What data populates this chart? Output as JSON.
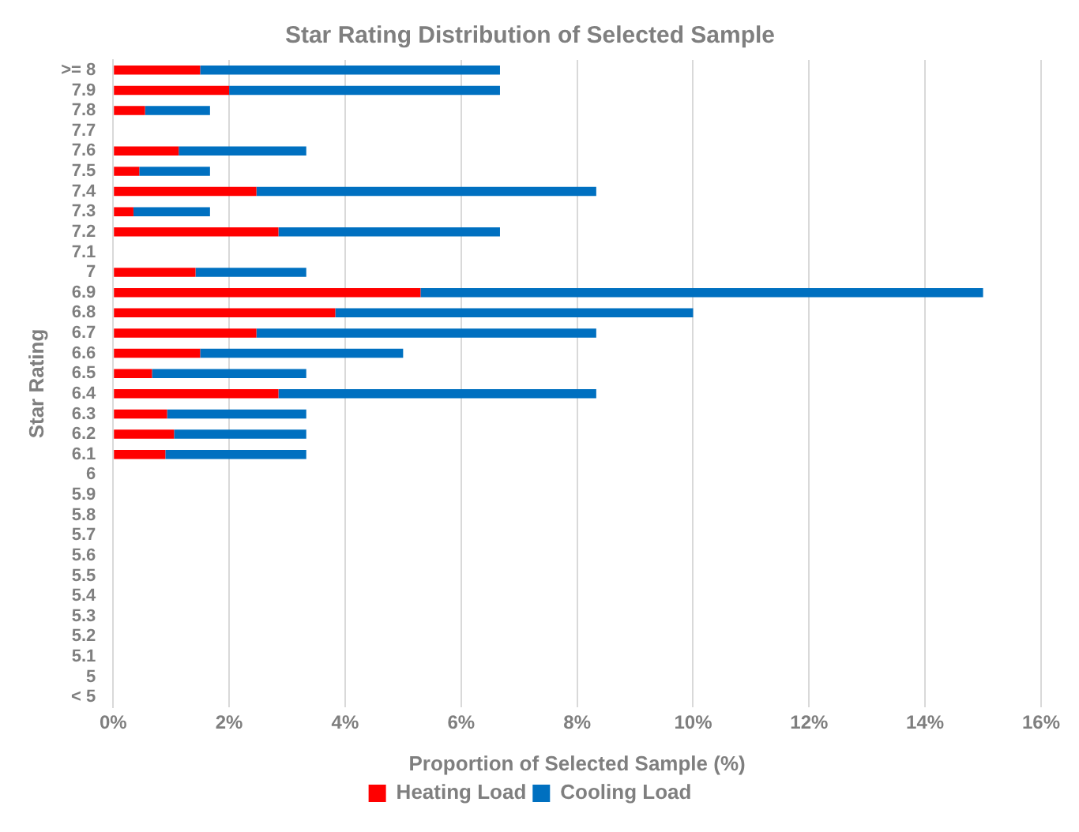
{
  "chart_data": {
    "type": "bar",
    "orientation": "horizontal",
    "stacked": true,
    "title": "Star Rating Distribution of Selected Sample",
    "xlabel": "Proportion of Selected Sample (%)",
    "ylabel": "Star Rating",
    "categories": [
      ">= 8",
      "7.9",
      "7.8",
      "7.7",
      "7.6",
      "7.5",
      "7.4",
      "7.3",
      "7.2",
      "7.1",
      "7",
      "6.9",
      "6.8",
      "6.7",
      "6.6",
      "6.5",
      "6.4",
      "6.3",
      "6.2",
      "6.1",
      "6",
      "5.9",
      "5.8",
      "5.7",
      "5.6",
      "5.5",
      "5.4",
      "5.3",
      "5.2",
      "5.1",
      "5",
      "< 5"
    ],
    "series": [
      {
        "name": "Heating Load",
        "color": "#ff0000",
        "values": [
          1.5,
          2.0,
          0.55,
          null,
          1.13,
          0.45,
          2.47,
          0.35,
          2.85,
          null,
          1.42,
          5.3,
          3.83,
          2.47,
          1.5,
          0.67,
          2.85,
          0.93,
          1.05,
          0.9,
          null,
          null,
          null,
          null,
          null,
          null,
          null,
          null,
          null,
          null,
          null,
          null
        ]
      },
      {
        "name": "Cooling Load",
        "color": "#0070c0",
        "values": [
          5.17,
          4.67,
          1.12,
          null,
          2.2,
          1.22,
          5.86,
          1.32,
          3.82,
          null,
          1.91,
          9.7,
          6.17,
          5.86,
          3.5,
          2.66,
          5.48,
          2.4,
          2.28,
          2.43,
          null,
          null,
          null,
          null,
          null,
          null,
          null,
          null,
          null,
          null,
          null,
          null
        ]
      }
    ],
    "xlim": [
      0,
      16
    ],
    "xticks": [
      {
        "value": 0,
        "label": "0%"
      },
      {
        "value": 2,
        "label": "2%"
      },
      {
        "value": 4,
        "label": "4%"
      },
      {
        "value": 6,
        "label": "6%"
      },
      {
        "value": 8,
        "label": "8%"
      },
      {
        "value": 10,
        "label": "10%"
      },
      {
        "value": 12,
        "label": "12%"
      },
      {
        "value": 14,
        "label": "14%"
      },
      {
        "value": 16,
        "label": "16%"
      }
    ],
    "grid": "x",
    "legend": "bottom"
  }
}
